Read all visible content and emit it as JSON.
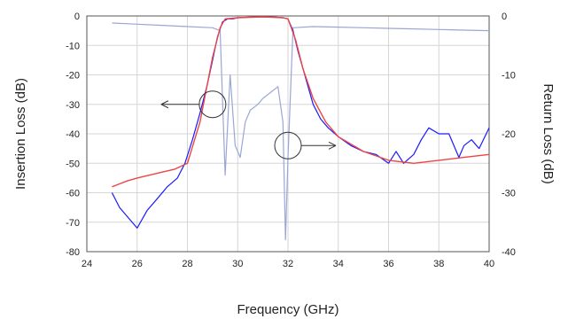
{
  "chart_data": {
    "type": "line",
    "xlabel": "Frequency (GHz)",
    "ylabel_left": "Insertion Loss (dB)",
    "ylabel_right": "Return Loss (dB)",
    "xlim": [
      24,
      40
    ],
    "ylim_left": [
      -80,
      0
    ],
    "ylim_right": [
      -40,
      0
    ],
    "x_ticks": [
      "24",
      "26",
      "28",
      "30",
      "32",
      "34",
      "36",
      "38",
      "40"
    ],
    "y_left_ticks": [
      "0",
      "-10",
      "-20",
      "-30",
      "-40",
      "-50",
      "-60",
      "-70",
      "-80"
    ],
    "y_right_ticks": [
      "0",
      "-10",
      "-20",
      "-30",
      "-40"
    ],
    "grid": true,
    "series": [
      {
        "axis": "left",
        "color": "#1a1aff",
        "x": [
          25.0,
          25.3,
          25.6,
          26.0,
          26.4,
          26.8,
          27.2,
          27.6,
          27.9,
          28.2,
          28.5,
          28.8,
          29.0,
          29.2,
          29.4,
          29.6,
          29.8,
          30.0,
          30.5,
          31.0,
          31.5,
          31.8,
          32.0,
          32.2,
          32.4,
          32.6,
          32.8,
          33.0,
          33.3,
          33.6,
          34.0,
          34.5,
          35.0,
          35.5,
          36.0,
          36.3,
          36.6,
          37.0,
          37.3,
          37.6,
          38.0,
          38.4,
          38.8,
          39.0,
          39.3,
          39.6,
          40.0
        ],
        "y": [
          -60,
          -65,
          -68,
          -72,
          -66,
          -62,
          -58,
          -55,
          -50,
          -42,
          -33,
          -23,
          -15,
          -7,
          -2,
          -1,
          -1,
          -0.6,
          -0.4,
          -0.3,
          -0.4,
          -0.6,
          -1,
          -5,
          -12,
          -18,
          -24,
          -30,
          -35,
          -38,
          -41,
          -44,
          -46,
          -47,
          -50,
          -46,
          -50,
          -47,
          -42,
          -38,
          -40,
          -40,
          -48,
          -44,
          -42,
          -45,
          -38
        ]
      },
      {
        "axis": "left",
        "color": "#ee4444",
        "x": [
          25.0,
          25.3,
          25.6,
          26.0,
          26.5,
          27.0,
          27.5,
          28.0,
          28.5,
          29.0,
          29.3,
          29.5,
          30.0,
          31.0,
          31.8,
          32.0,
          32.3,
          32.6,
          33.0,
          33.5,
          34.0,
          35.0,
          36.0,
          37.0,
          38.0,
          39.0,
          40.0
        ],
        "y": [
          -58,
          -57,
          -56,
          -55,
          -54,
          -53,
          -52,
          -50,
          -36,
          -14,
          -4,
          -1,
          -0.6,
          -0.3,
          -0.6,
          -1,
          -8,
          -18,
          -28,
          -36,
          -41,
          -46,
          -49,
          -50,
          -49,
          -48,
          -47
        ]
      },
      {
        "axis": "right",
        "color": "#9aa6d6",
        "x": [
          25.0,
          26.0,
          27.0,
          28.0,
          29.0,
          29.3,
          29.5,
          29.7,
          29.9,
          30.1,
          30.3,
          30.5,
          30.8,
          31.0,
          31.3,
          31.6,
          31.8,
          31.9,
          32.0,
          32.2,
          33.0,
          34.0,
          35.0,
          36.0,
          37.0,
          38.0,
          39.0,
          40.0
        ],
        "y": [
          -1.2,
          -1.4,
          -1.6,
          -1.8,
          -2.0,
          -2.5,
          -27,
          -10,
          -22,
          -24,
          -18,
          -16,
          -15,
          -14,
          -13,
          -12,
          -18,
          -38,
          -24,
          -2.0,
          -1.8,
          -1.9,
          -2.0,
          -2.1,
          -2.2,
          -2.3,
          -2.4,
          -2.5
        ]
      }
    ],
    "annotations": [
      {
        "shape": "circle-arrow",
        "direction": "left",
        "points_to": "Insertion Loss (dB)"
      },
      {
        "shape": "circle-arrow",
        "direction": "right",
        "points_to": "Return Loss (dB)"
      }
    ]
  }
}
